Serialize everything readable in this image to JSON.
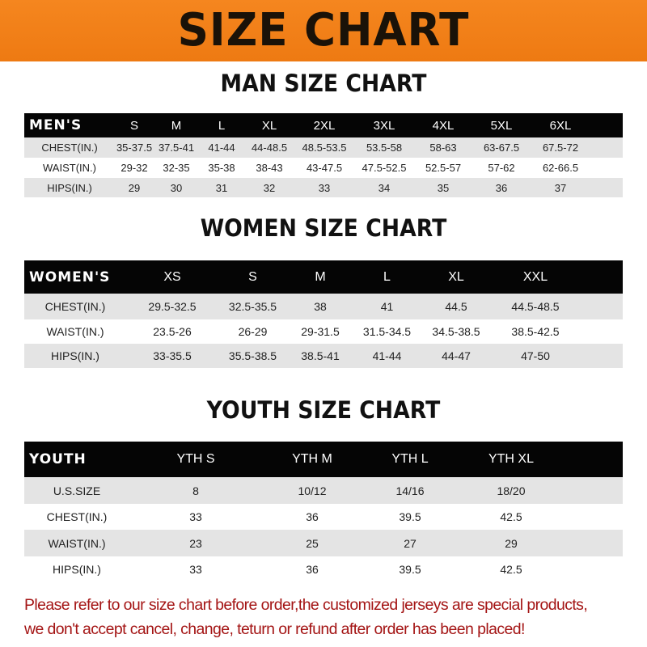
{
  "banner": {
    "title": "SIZE CHART",
    "color": "#f08019"
  },
  "men": {
    "title": "MAN SIZE CHART",
    "header": [
      "MEN'S",
      "S",
      "M",
      "L",
      "XL",
      "2XL",
      "3XL",
      "4XL",
      "5XL",
      "6XL"
    ],
    "rows": [
      [
        "CHEST(IN.)",
        "35-37.5",
        "37.5-41",
        "41-44",
        "44-48.5",
        "48.5-53.5",
        "53.5-58",
        "58-63",
        "63-67.5",
        "67.5-72"
      ],
      [
        "WAIST(IN.)",
        "29-32",
        "32-35",
        "35-38",
        "38-43",
        "43-47.5",
        "47.5-52.5",
        "52.5-57",
        "57-62",
        "62-66.5"
      ],
      [
        "HIPS(IN.)",
        "29",
        "30",
        "31",
        "32",
        "33",
        "34",
        "35",
        "36",
        "37"
      ]
    ]
  },
  "women": {
    "title": "WOMEN SIZE CHART",
    "header": [
      "WOMEN'S",
      "XS",
      "S",
      "M",
      "L",
      "XL",
      "XXL"
    ],
    "rows": [
      [
        "CHEST(IN.)",
        "29.5-32.5",
        "32.5-35.5",
        "38",
        "41",
        "44.5",
        "44.5-48.5"
      ],
      [
        "WAIST(IN.)",
        "23.5-26",
        "26-29",
        "29-31.5",
        "31.5-34.5",
        "34.5-38.5",
        "38.5-42.5"
      ],
      [
        "HIPS(IN.)",
        "33-35.5",
        "35.5-38.5",
        "38.5-41",
        "41-44",
        "44-47",
        "47-50"
      ]
    ]
  },
  "youth": {
    "title": "YOUTH SIZE CHART",
    "header": [
      "YOUTH",
      "YTH S",
      "YTH M",
      "YTH L",
      "YTH XL"
    ],
    "rows": [
      [
        "U.S.SIZE",
        "8",
        "10/12",
        "14/16",
        "18/20"
      ],
      [
        "CHEST(IN.)",
        "33",
        "36",
        "39.5",
        "42.5"
      ],
      [
        "WAIST(IN.)",
        "23",
        "25",
        "27",
        "29"
      ],
      [
        "HIPS(IN.)",
        "33",
        "36",
        "39.5",
        "42.5"
      ]
    ]
  },
  "note": {
    "line1": "Please refer to our size chart before order,the customized jerseys are special products,",
    "line2": "we don't accept cancel, change, teturn or refund after order has been placed!",
    "color": "#a41515"
  }
}
